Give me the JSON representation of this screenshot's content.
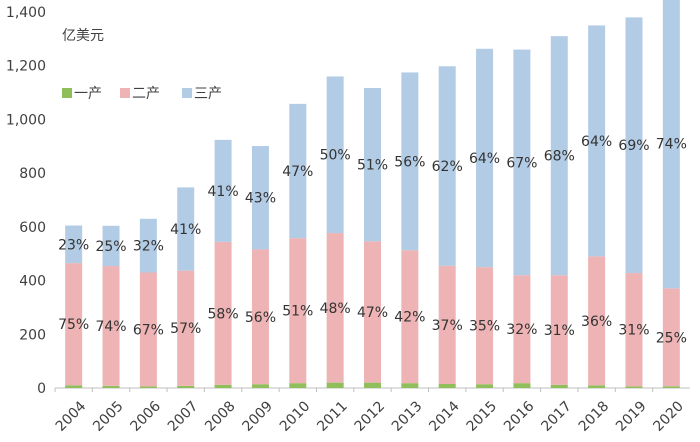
{
  "chart_data": {
    "type": "bar",
    "stacked": true,
    "unit_label": "亿美元",
    "categories": [
      "2004",
      "2005",
      "2006",
      "2007",
      "2008",
      "2009",
      "2010",
      "2011",
      "2012",
      "2013",
      "2014",
      "2015",
      "2016",
      "2017",
      "2018",
      "2019",
      "2020"
    ],
    "series": [
      {
        "name": "一产",
        "color": "#8fbe5a",
        "values": [
          10,
          8,
          6,
          8,
          12,
          14,
          18,
          20,
          20,
          18,
          15,
          14,
          18,
          12,
          10,
          6,
          6
        ]
      },
      {
        "name": "二产",
        "color": "#eeb3b4",
        "values": [
          455,
          446,
          424,
          429,
          532,
          502,
          540,
          557,
          526,
          495,
          440,
          436,
          402,
          408,
          480,
          422,
          365
        ]
      },
      {
        "name": "三产",
        "color": "#b3cce5",
        "values": [
          140,
          150,
          200,
          310,
          380,
          385,
          500,
          583,
          571,
          662,
          743,
          813,
          840,
          890,
          860,
          952,
          1079
        ]
      }
    ],
    "labels_secondary": [
      "75%",
      "74%",
      "67%",
      "57%",
      "58%",
      "56%",
      "51%",
      "48%",
      "47%",
      "42%",
      "37%",
      "35%",
      "32%",
      "31%",
      "36%",
      "31%",
      "25%"
    ],
    "labels_tertiary": [
      "23%",
      "25%",
      "32%",
      "41%",
      "41%",
      "43%",
      "47%",
      "50%",
      "51%",
      "56%",
      "62%",
      "64%",
      "67%",
      "68%",
      "64%",
      "69%",
      "74%"
    ],
    "ylim": [
      0,
      1400
    ],
    "yticks": [
      0,
      200,
      400,
      600,
      800,
      1000,
      1200,
      1400
    ],
    "ytick_labels": [
      "0",
      "200",
      "400",
      "600",
      "800",
      "1,000",
      "1,200",
      "1,400"
    ],
    "legend_position": "top-left",
    "grid": false
  }
}
